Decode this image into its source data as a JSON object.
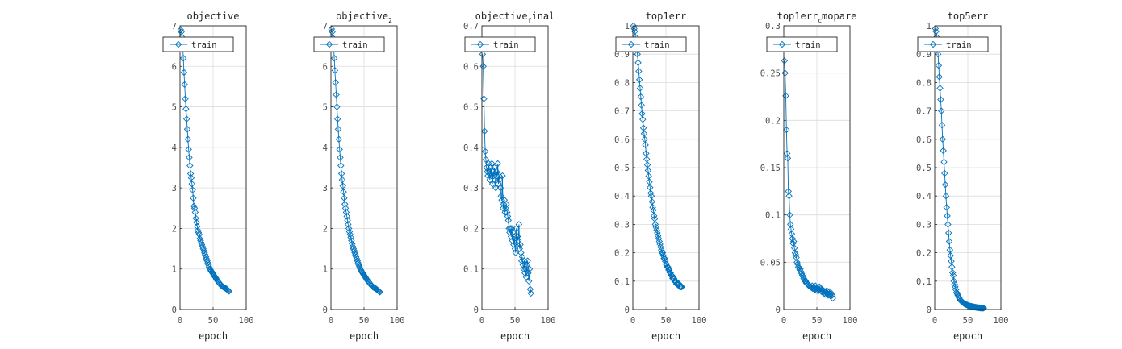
{
  "colors": {
    "series": "#0072bd",
    "grid": "#dcdcdc",
    "axis": "#262626"
  },
  "chart_data": [
    {
      "type": "line",
      "title": "objective",
      "xlabel": "epoch",
      "xlim": [
        0,
        100
      ],
      "ylim": [
        0,
        7
      ],
      "xticks": [
        "0",
        "50",
        "100"
      ],
      "yticks": [
        "0",
        "1",
        "2",
        "3",
        "4",
        "5",
        "6",
        "7"
      ],
      "grid": true,
      "legend": "top",
      "series": [
        {
          "name": "train",
          "marker": "diamond",
          "x": [
            1,
            2,
            3,
            4,
            5,
            6,
            7,
            8,
            9,
            10,
            11,
            12,
            13,
            14,
            15,
            16,
            17,
            18,
            19,
            20,
            21,
            22,
            23,
            24,
            25,
            26,
            27,
            28,
            29,
            30,
            31,
            32,
            33,
            34,
            35,
            36,
            37,
            38,
            39,
            40,
            41,
            42,
            43,
            44,
            45,
            46,
            47,
            48,
            49,
            50,
            51,
            52,
            53,
            54,
            55,
            56,
            57,
            58,
            59,
            60,
            61,
            62,
            63,
            64,
            65,
            66,
            67,
            68,
            69,
            70,
            71,
            72,
            73,
            74
          ],
          "y": [
            6.9,
            6.85,
            6.72,
            6.55,
            6.2,
            5.85,
            5.55,
            5.2,
            4.95,
            4.7,
            4.45,
            4.2,
            3.95,
            3.75,
            3.55,
            3.35,
            3.25,
            3.1,
            2.95,
            2.75,
            2.55,
            2.5,
            2.4,
            2.25,
            2.15,
            2.05,
            1.95,
            1.9,
            1.85,
            1.75,
            1.7,
            1.65,
            1.6,
            1.55,
            1.5,
            1.45,
            1.4,
            1.35,
            1.3,
            1.25,
            1.2,
            1.15,
            1.1,
            1.05,
            1.0,
            0.98,
            0.95,
            0.93,
            0.9,
            0.88,
            0.85,
            0.82,
            0.8,
            0.78,
            0.75,
            0.72,
            0.7,
            0.68,
            0.66,
            0.64,
            0.62,
            0.6,
            0.58,
            0.57,
            0.56,
            0.55,
            0.54,
            0.53,
            0.52,
            0.51,
            0.5,
            0.48,
            0.46,
            0.45
          ]
        }
      ]
    },
    {
      "type": "line",
      "title": "objective",
      "title_sub": "2",
      "xlabel": "epoch",
      "xlim": [
        0,
        100
      ],
      "ylim": [
        0,
        7
      ],
      "xticks": [
        "0",
        "50",
        "100"
      ],
      "yticks": [
        "0",
        "1",
        "2",
        "3",
        "4",
        "5",
        "6",
        "7"
      ],
      "grid": true,
      "legend": "top",
      "series": [
        {
          "name": "train",
          "marker": "diamond",
          "x": [
            1,
            2,
            3,
            4,
            5,
            6,
            7,
            8,
            9,
            10,
            11,
            12,
            13,
            14,
            15,
            16,
            17,
            18,
            19,
            20,
            21,
            22,
            23,
            24,
            25,
            26,
            27,
            28,
            29,
            30,
            31,
            32,
            33,
            34,
            35,
            36,
            37,
            38,
            39,
            40,
            41,
            42,
            43,
            44,
            45,
            46,
            47,
            48,
            49,
            50,
            51,
            52,
            53,
            54,
            55,
            56,
            57,
            58,
            59,
            60,
            61,
            62,
            63,
            64,
            65,
            66,
            67,
            68,
            69,
            70,
            71,
            72,
            73,
            74
          ],
          "y": [
            6.92,
            6.85,
            6.7,
            6.5,
            6.2,
            5.9,
            5.6,
            5.3,
            5.0,
            4.7,
            4.45,
            4.2,
            3.95,
            3.75,
            3.55,
            3.35,
            3.2,
            3.05,
            2.9,
            2.75,
            2.6,
            2.5,
            2.4,
            2.3,
            2.2,
            2.1,
            2.0,
            1.92,
            1.85,
            1.78,
            1.7,
            1.62,
            1.55,
            1.5,
            1.45,
            1.4,
            1.35,
            1.3,
            1.25,
            1.2,
            1.15,
            1.1,
            1.06,
            1.02,
            0.98,
            0.95,
            0.92,
            0.9,
            0.87,
            0.85,
            0.82,
            0.8,
            0.77,
            0.75,
            0.72,
            0.7,
            0.68,
            0.66,
            0.64,
            0.62,
            0.6,
            0.58,
            0.56,
            0.55,
            0.54,
            0.53,
            0.52,
            0.51,
            0.5,
            0.49,
            0.47,
            0.46,
            0.44,
            0.43
          ]
        }
      ]
    },
    {
      "type": "line",
      "title": "objective",
      "title_sub": "f",
      "title_rest": "inal",
      "xlabel": "epoch",
      "xlim": [
        0,
        100
      ],
      "ylim": [
        0,
        0.7
      ],
      "xticks": [
        "0",
        "50",
        "100"
      ],
      "yticks": [
        "0",
        "0.1",
        "0.2",
        "0.3",
        "0.4",
        "0.5",
        "0.6",
        "0.7"
      ],
      "grid": true,
      "legend": "top",
      "series": [
        {
          "name": "train",
          "marker": "diamond",
          "x": [
            1,
            2,
            3,
            4,
            5,
            6,
            7,
            8,
            9,
            10,
            11,
            12,
            13,
            14,
            15,
            16,
            17,
            18,
            19,
            20,
            21,
            22,
            23,
            24,
            25,
            26,
            27,
            28,
            29,
            30,
            31,
            32,
            33,
            34,
            35,
            36,
            37,
            38,
            39,
            40,
            41,
            42,
            43,
            44,
            45,
            46,
            47,
            48,
            49,
            50,
            51,
            52,
            53,
            54,
            55,
            56,
            57,
            58,
            59,
            60,
            61,
            62,
            63,
            64,
            65,
            66,
            67,
            68,
            69,
            70,
            71,
            72,
            73,
            74
          ],
          "y": [
            0.63,
            0.6,
            0.52,
            0.44,
            0.39,
            0.37,
            0.35,
            0.34,
            0.33,
            0.36,
            0.34,
            0.32,
            0.35,
            0.33,
            0.36,
            0.31,
            0.34,
            0.33,
            0.35,
            0.32,
            0.3,
            0.34,
            0.33,
            0.36,
            0.31,
            0.33,
            0.32,
            0.3,
            0.28,
            0.27,
            0.33,
            0.25,
            0.26,
            0.27,
            0.24,
            0.25,
            0.26,
            0.24,
            0.23,
            0.22,
            0.2,
            0.19,
            0.2,
            0.18,
            0.2,
            0.17,
            0.19,
            0.16,
            0.18,
            0.15,
            0.14,
            0.2,
            0.16,
            0.18,
            0.17,
            0.21,
            0.15,
            0.16,
            0.14,
            0.12,
            0.13,
            0.11,
            0.1,
            0.12,
            0.09,
            0.1,
            0.08,
            0.11,
            0.12,
            0.09,
            0.07,
            0.1,
            0.05,
            0.04
          ]
        }
      ]
    },
    {
      "type": "line",
      "title": "top1err",
      "xlabel": "epoch",
      "xlim": [
        0,
        100
      ],
      "ylim": [
        0,
        1
      ],
      "xticks": [
        "0",
        "50",
        "100"
      ],
      "yticks": [
        "0",
        "0.1",
        "0.2",
        "0.3",
        "0.4",
        "0.5",
        "0.6",
        "0.7",
        "0.8",
        "0.9",
        "1"
      ],
      "grid": true,
      "legend": "top",
      "series": [
        {
          "name": "train",
          "marker": "diamond",
          "x": [
            1,
            2,
            3,
            4,
            5,
            6,
            7,
            8,
            9,
            10,
            11,
            12,
            13,
            14,
            15,
            16,
            17,
            18,
            19,
            20,
            21,
            22,
            23,
            24,
            25,
            26,
            27,
            28,
            29,
            30,
            31,
            32,
            33,
            34,
            35,
            36,
            37,
            38,
            39,
            40,
            41,
            42,
            43,
            44,
            45,
            46,
            47,
            48,
            49,
            50,
            51,
            52,
            53,
            54,
            55,
            56,
            57,
            58,
            59,
            60,
            61,
            62,
            63,
            64,
            65,
            66,
            67,
            68,
            69,
            70,
            71,
            72,
            73,
            74
          ],
          "y": [
            1.0,
            0.99,
            0.98,
            0.96,
            0.94,
            0.92,
            0.9,
            0.87,
            0.84,
            0.81,
            0.78,
            0.75,
            0.72,
            0.69,
            0.67,
            0.64,
            0.62,
            0.6,
            0.58,
            0.55,
            0.53,
            0.51,
            0.49,
            0.47,
            0.45,
            0.43,
            0.41,
            0.4,
            0.38,
            0.36,
            0.35,
            0.33,
            0.32,
            0.3,
            0.29,
            0.28,
            0.27,
            0.26,
            0.25,
            0.24,
            0.23,
            0.22,
            0.21,
            0.2,
            0.2,
            0.19,
            0.18,
            0.18,
            0.17,
            0.16,
            0.16,
            0.15,
            0.15,
            0.14,
            0.14,
            0.13,
            0.13,
            0.12,
            0.12,
            0.11,
            0.11,
            0.11,
            0.1,
            0.1,
            0.1,
            0.09,
            0.09,
            0.09,
            0.09,
            0.09,
            0.08,
            0.08,
            0.08,
            0.08
          ]
        }
      ]
    },
    {
      "type": "line",
      "title": "top1err",
      "title_sub": "c",
      "title_rest": "mopare",
      "xlabel": "epoch",
      "xlim": [
        0,
        100
      ],
      "ylim": [
        0,
        0.3
      ],
      "xticks": [
        "0",
        "50",
        "100"
      ],
      "yticks": [
        "0",
        "0.05",
        "0.1",
        "0.15",
        "0.2",
        "0.25",
        "0.3"
      ],
      "grid": true,
      "legend": "top",
      "series": [
        {
          "name": "train",
          "marker": "diamond",
          "x": [
            1,
            2,
            3,
            4,
            5,
            6,
            7,
            8,
            9,
            10,
            11,
            12,
            13,
            14,
            15,
            16,
            17,
            18,
            19,
            20,
            21,
            22,
            23,
            24,
            25,
            26,
            27,
            28,
            29,
            30,
            31,
            32,
            33,
            34,
            35,
            36,
            37,
            38,
            39,
            40,
            41,
            42,
            43,
            44,
            45,
            46,
            47,
            48,
            49,
            50,
            51,
            52,
            53,
            54,
            55,
            56,
            57,
            58,
            59,
            60,
            61,
            62,
            63,
            64,
            65,
            66,
            67,
            68,
            69,
            70,
            71,
            72,
            73,
            74
          ],
          "y": [
            0.263,
            0.25,
            0.226,
            0.19,
            0.165,
            0.16,
            0.125,
            0.12,
            0.1,
            0.09,
            0.085,
            0.08,
            0.075,
            0.07,
            0.072,
            0.065,
            0.06,
            0.058,
            0.055,
            0.05,
            0.048,
            0.045,
            0.044,
            0.042,
            0.043,
            0.04,
            0.038,
            0.036,
            0.035,
            0.033,
            0.032,
            0.03,
            0.03,
            0.028,
            0.028,
            0.027,
            0.026,
            0.025,
            0.025,
            0.024,
            0.024,
            0.023,
            0.025,
            0.022,
            0.024,
            0.022,
            0.021,
            0.025,
            0.022,
            0.02,
            0.023,
            0.021,
            0.02,
            0.024,
            0.022,
            0.02,
            0.019,
            0.021,
            0.018,
            0.02,
            0.017,
            0.019,
            0.016,
            0.018,
            0.02,
            0.017,
            0.015,
            0.018,
            0.019,
            0.016,
            0.014,
            0.017,
            0.015,
            0.012
          ]
        }
      ]
    },
    {
      "type": "line",
      "title": "top5err",
      "xlabel": "epoch",
      "xlim": [
        0,
        100
      ],
      "ylim": [
        0,
        1
      ],
      "xticks": [
        "0",
        "50",
        "100"
      ],
      "yticks": [
        "0",
        "0.1",
        "0.2",
        "0.3",
        "0.4",
        "0.5",
        "0.6",
        "0.7",
        "0.8",
        "0.9",
        "1"
      ],
      "grid": true,
      "legend": "top",
      "series": [
        {
          "name": "train",
          "marker": "diamond",
          "x": [
            1,
            2,
            3,
            4,
            5,
            6,
            7,
            8,
            9,
            10,
            11,
            12,
            13,
            14,
            15,
            16,
            17,
            18,
            19,
            20,
            21,
            22,
            23,
            24,
            25,
            26,
            27,
            28,
            29,
            30,
            31,
            32,
            33,
            34,
            35,
            36,
            37,
            38,
            39,
            40,
            41,
            42,
            43,
            44,
            45,
            46,
            47,
            48,
            49,
            50,
            51,
            52,
            53,
            54,
            55,
            56,
            57,
            58,
            59,
            60,
            61,
            62,
            63,
            64,
            65,
            66,
            67,
            68,
            69,
            70,
            71,
            72,
            73,
            74
          ],
          "y": [
            0.99,
            0.98,
            0.96,
            0.93,
            0.9,
            0.86,
            0.82,
            0.78,
            0.74,
            0.7,
            0.65,
            0.6,
            0.56,
            0.52,
            0.48,
            0.44,
            0.4,
            0.36,
            0.33,
            0.3,
            0.27,
            0.24,
            0.21,
            0.19,
            0.17,
            0.15,
            0.13,
            0.12,
            0.1,
            0.09,
            0.08,
            0.07,
            0.06,
            0.055,
            0.05,
            0.045,
            0.04,
            0.036,
            0.032,
            0.03,
            0.028,
            0.026,
            0.024,
            0.022,
            0.02,
            0.019,
            0.018,
            0.017,
            0.016,
            0.015,
            0.014,
            0.013,
            0.012,
            0.012,
            0.011,
            0.011,
            0.01,
            0.01,
            0.009,
            0.009,
            0.008,
            0.008,
            0.007,
            0.007,
            0.007,
            0.006,
            0.006,
            0.006,
            0.005,
            0.005,
            0.005,
            0.005,
            0.005,
            0.005
          ]
        }
      ]
    }
  ]
}
